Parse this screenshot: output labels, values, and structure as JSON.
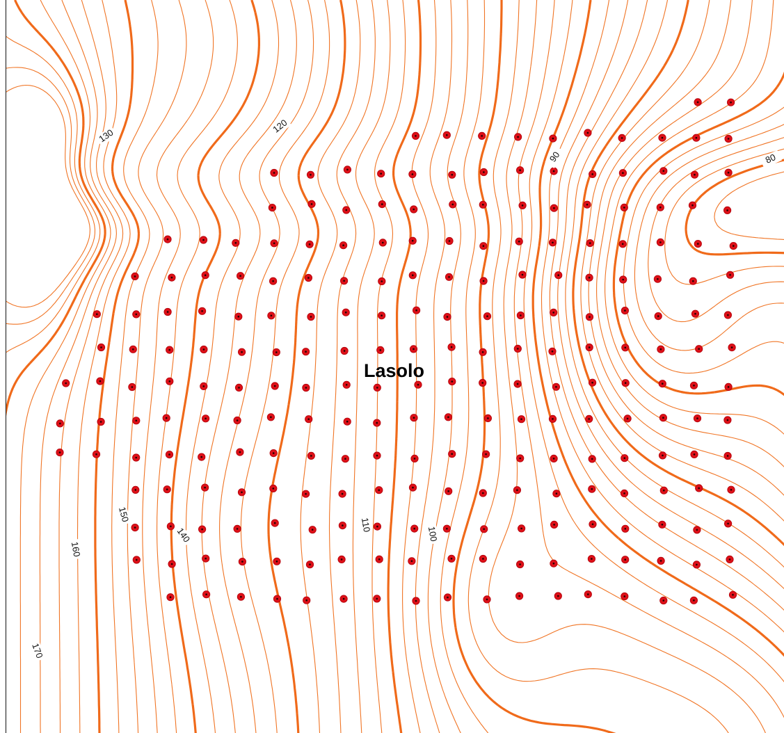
{
  "map": {
    "place_label": "Lasolo",
    "contour_color": "#f06a1a",
    "point_color": "#dd1018",
    "contour_interval": 2,
    "index_interval": 10,
    "contour_labels": [
      "130",
      "120",
      "90",
      "80",
      "150",
      "140",
      "160",
      "170",
      "110",
      "100"
    ],
    "elevation_range": [
      78,
      176
    ],
    "sample_point_count": 277
  }
}
